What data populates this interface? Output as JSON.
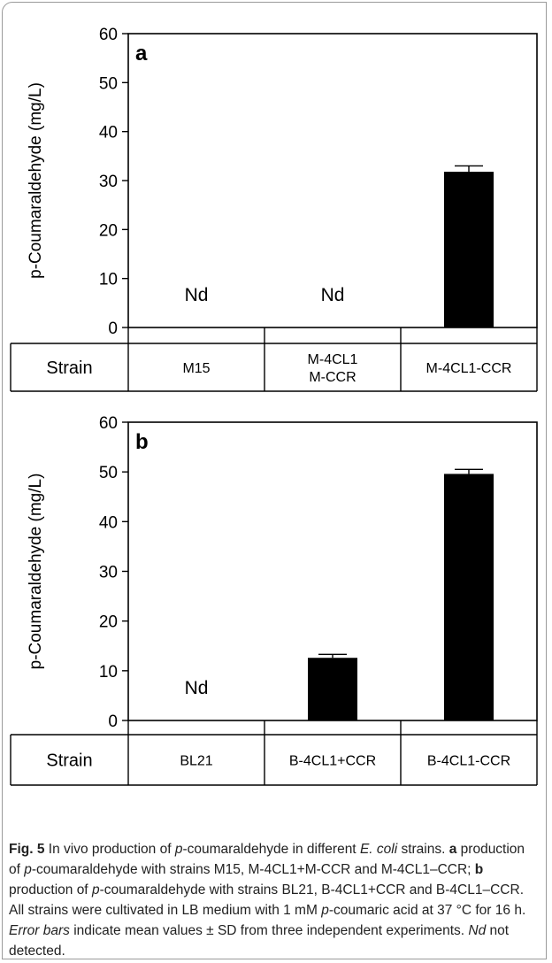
{
  "chart_data": [
    {
      "type": "bar",
      "panel_label": "a",
      "ylabel": "p-Coumaraldehyde (mg/L)",
      "ylim": [
        0,
        60
      ],
      "yticks": [
        0,
        10,
        20,
        30,
        40,
        50,
        60
      ],
      "row_header": "Strain",
      "categories": [
        "M15",
        "M-4CL1\nM-CCR",
        "M-4CL1-CCR"
      ],
      "values": [
        null,
        null,
        31.8
      ],
      "errors": [
        null,
        null,
        1.2
      ],
      "bar_annotations": [
        "Nd",
        "Nd",
        ""
      ],
      "bar_color": "#000000",
      "grid": false
    },
    {
      "type": "bar",
      "panel_label": "b",
      "ylabel": "p-Coumaraldehyde (mg/L)",
      "ylim": [
        0,
        60
      ],
      "yticks": [
        0,
        10,
        20,
        30,
        40,
        50,
        60
      ],
      "row_header": "Strain",
      "categories": [
        "BL21",
        "B-4CL1+CCR",
        "B-4CL1-CCR"
      ],
      "values": [
        null,
        12.6,
        49.6
      ],
      "errors": [
        null,
        0.7,
        0.9
      ],
      "bar_annotations": [
        "Nd",
        "",
        ""
      ],
      "bar_color": "#000000",
      "grid": false
    }
  ],
  "caption": {
    "fig_label": "Fig. 5",
    "t1": "  In vivo production of ",
    "i1": "p",
    "t2": "-coumaraldehyde in different ",
    "i2": "E. coli",
    "t3": " strains. ",
    "b1": "a",
    "t4": " production of ",
    "i3": "p",
    "t5": "-coumaraldehyde with strains M15, M-4CL1+M-CCR and M-4CL1–CCR; ",
    "b2": "b",
    "t6": " production of ",
    "i4": "p",
    "t7": "-coumaraldehyde with strains BL21, B-4CL1+CCR and B-4CL1–CCR. All strains were cultivated in LB medium with 1 mM ",
    "i5": "p",
    "t8": "-coumaric acid at 37 °C for 16 h. ",
    "i6": "Error bars",
    "t9": " indicate mean values ± SD from three independent experiments. ",
    "i7": "Nd",
    "t10": " not detected."
  }
}
